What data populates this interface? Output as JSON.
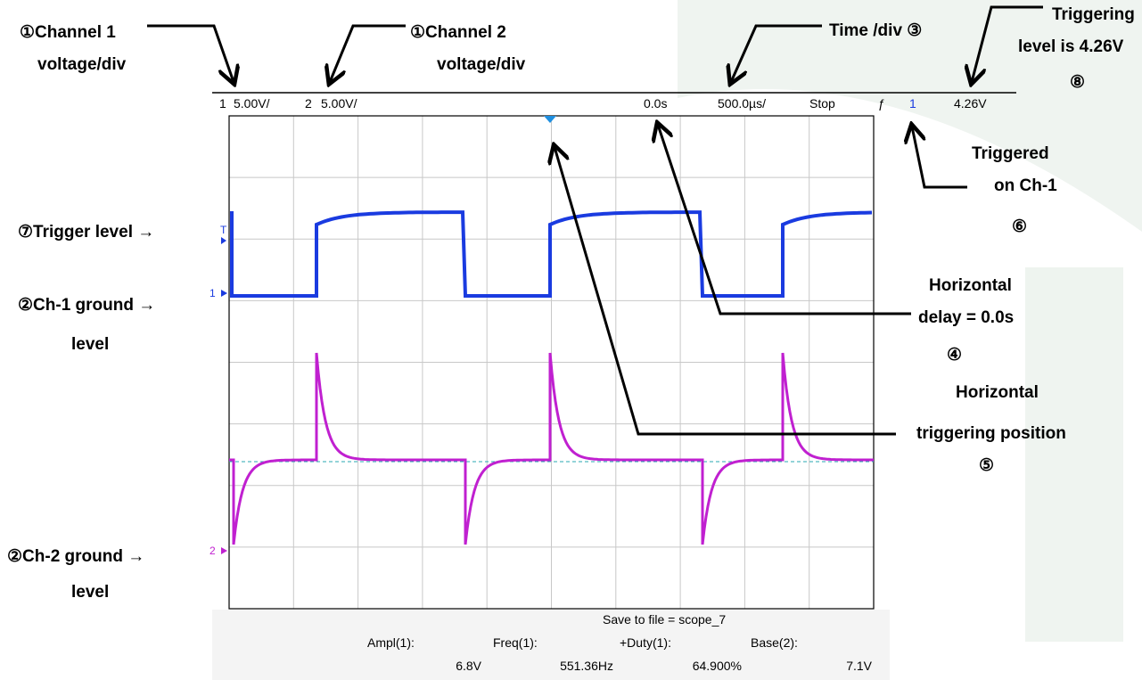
{
  "status_bar": {
    "ch1_label": "1",
    "ch1_scale": "5.00V/",
    "ch2_label": "2",
    "ch2_scale": "5.00V/",
    "delay": "0.0s",
    "time_scale": "500.0µs/",
    "run_state": "Stop",
    "trigger_slope": "ƒ",
    "trigger_source": "1",
    "trigger_level": "4.26V"
  },
  "screen_markers": {
    "trigger": "T",
    "ch1": "1",
    "ch2": "2"
  },
  "footer": {
    "save": "Save to file = scope_7",
    "measurements": [
      {
        "label": "Ampl(1):",
        "value": "6.8V"
      },
      {
        "label": "Freq(1):",
        "value": "551.36Hz"
      },
      {
        "label": "+Duty(1):",
        "value": "64.900%"
      },
      {
        "label": "Base(2):",
        "value": "7.1V"
      }
    ]
  },
  "annotations": {
    "channel1": [
      "①Channel 1",
      "voltage/div"
    ],
    "channel2": [
      "①Channel 2",
      "voltage/div"
    ],
    "time_div": [
      "Time /div ③"
    ],
    "trigger_level_value": [
      "Triggering",
      "level is 4.26V",
      "⑧"
    ],
    "triggered_on": [
      "Triggered",
      "on Ch-1",
      "⑥"
    ],
    "trigger_level": [
      "⑦Trigger level →"
    ],
    "ch1_ground": [
      "②Ch-1 ground →",
      "level"
    ],
    "horizontal_delay": [
      "Horizontal",
      "delay = 0.0s",
      "④"
    ],
    "trigger_position": [
      "Horizontal",
      "triggering position",
      "⑤"
    ],
    "ch2_ground": [
      "②Ch-2 ground →",
      "level"
    ]
  }
}
